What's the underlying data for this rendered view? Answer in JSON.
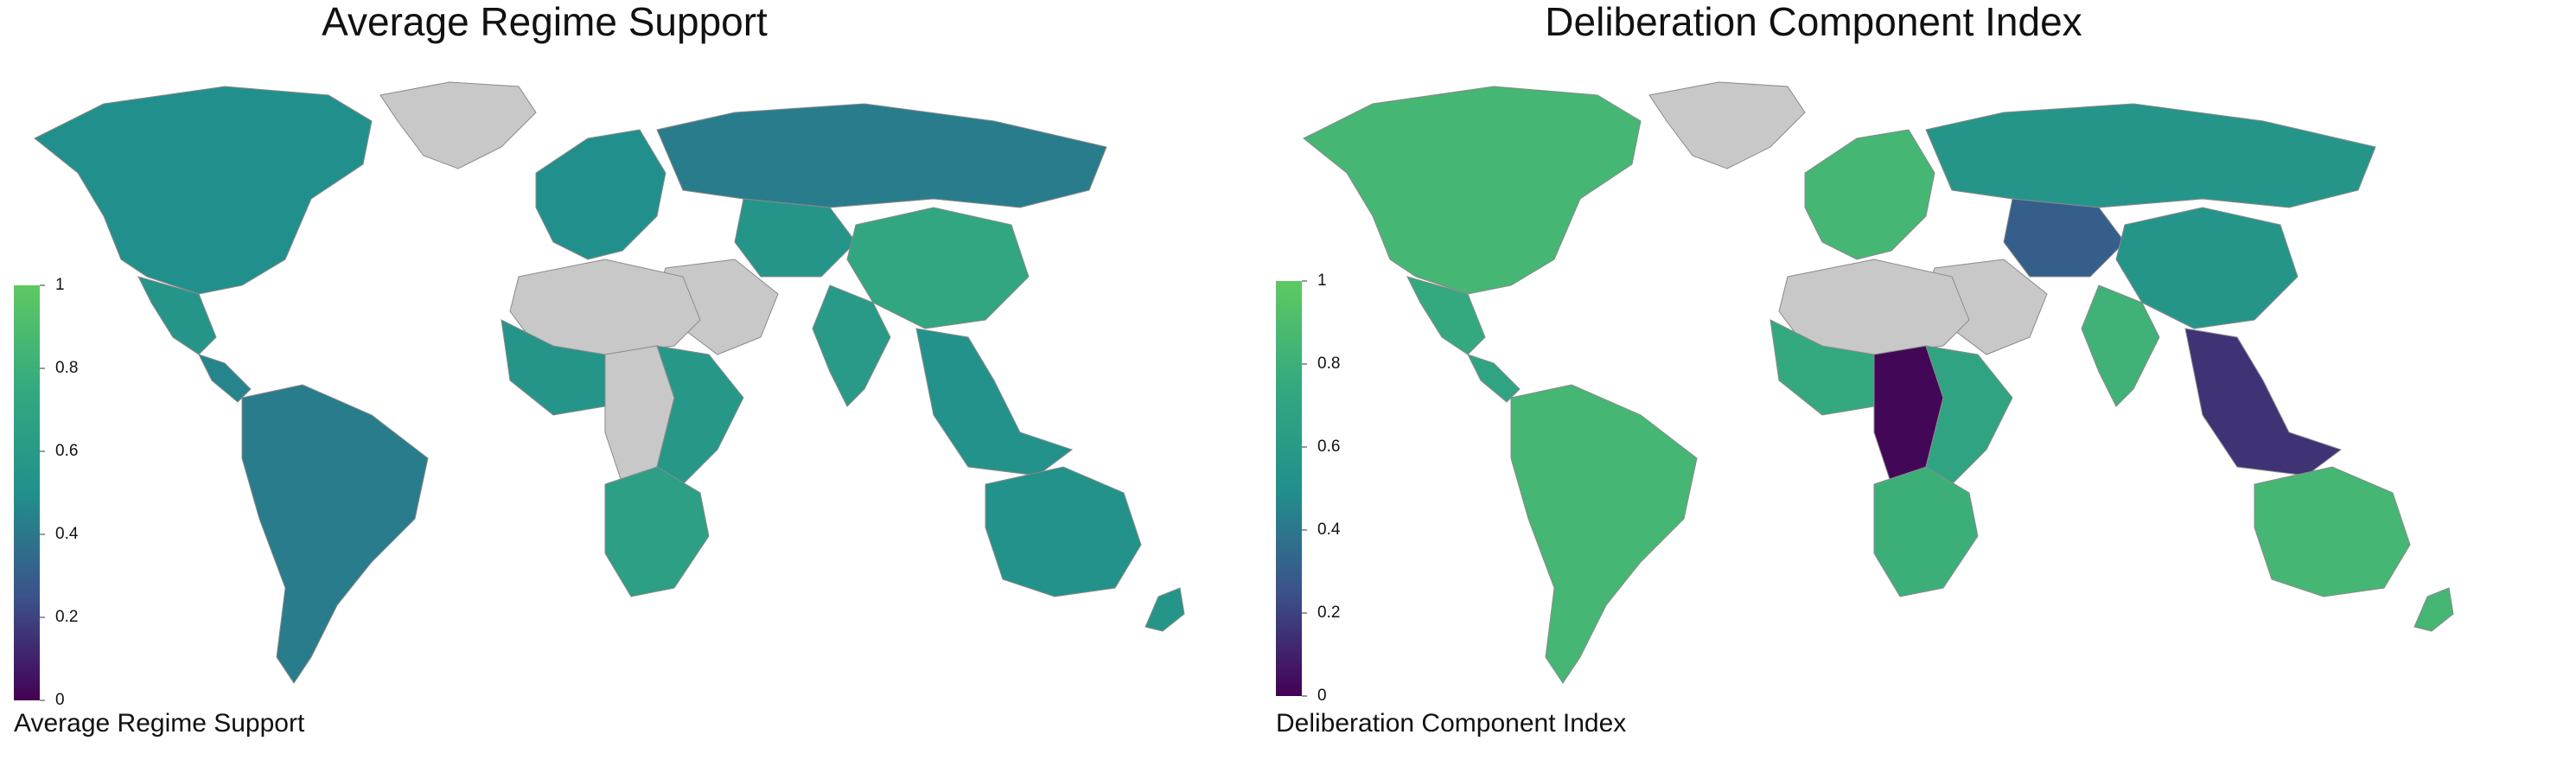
{
  "palette": {
    "na": "#c8c8c8",
    "ocean": "#ffffff",
    "scale": [
      "#440154",
      "#3b528b",
      "#21908c",
      "#34a97f",
      "#5ec962"
    ]
  },
  "left_map": {
    "title": "Average Regime Support",
    "legend_label": "Average Regime Support",
    "ticks": [
      "0",
      "0.2",
      "0.4",
      "0.6",
      "0.8",
      "1"
    ],
    "range": [
      0,
      1
    ],
    "regions": [
      {
        "name": "north-america",
        "value": 0.5
      },
      {
        "name": "mexico",
        "value": 0.55
      },
      {
        "name": "central-america",
        "value": 0.45
      },
      {
        "name": "south-america",
        "value": 0.42
      },
      {
        "name": "greenland",
        "value": null
      },
      {
        "name": "europe",
        "value": 0.5
      },
      {
        "name": "russia",
        "value": 0.42
      },
      {
        "name": "middle-east",
        "value": null
      },
      {
        "name": "north-africa",
        "value": null
      },
      {
        "name": "west-africa",
        "value": 0.55
      },
      {
        "name": "central-africa",
        "value": null
      },
      {
        "name": "east-africa",
        "value": 0.58
      },
      {
        "name": "southern-africa",
        "value": 0.65
      },
      {
        "name": "central-asia",
        "value": 0.55
      },
      {
        "name": "china",
        "value": 0.72
      },
      {
        "name": "india",
        "value": 0.6
      },
      {
        "name": "southeast-asia",
        "value": 0.52
      },
      {
        "name": "australia",
        "value": 0.52
      },
      {
        "name": "new-zealand",
        "value": 0.55
      }
    ]
  },
  "right_map": {
    "title": "Deliberation Component Index",
    "legend_label": "Deliberation Component Index",
    "ticks": [
      "0",
      "0.2",
      "0.4",
      "0.6",
      "0.8",
      "1"
    ],
    "range": [
      0,
      1
    ],
    "regions": [
      {
        "name": "north-america",
        "value": 0.85
      },
      {
        "name": "mexico",
        "value": 0.75
      },
      {
        "name": "central-america",
        "value": 0.7
      },
      {
        "name": "south-america",
        "value": 0.85
      },
      {
        "name": "greenland",
        "value": null
      },
      {
        "name": "europe",
        "value": 0.85
      },
      {
        "name": "russia",
        "value": 0.55
      },
      {
        "name": "middle-east",
        "value": null
      },
      {
        "name": "north-africa",
        "value": null
      },
      {
        "name": "west-africa",
        "value": 0.75
      },
      {
        "name": "central-africa",
        "value": 0.02
      },
      {
        "name": "east-africa",
        "value": 0.7
      },
      {
        "name": "southern-africa",
        "value": 0.8
      },
      {
        "name": "central-asia",
        "value": 0.3
      },
      {
        "name": "china",
        "value": 0.55
      },
      {
        "name": "india",
        "value": 0.82
      },
      {
        "name": "southeast-asia",
        "value": 0.15
      },
      {
        "name": "australia",
        "value": 0.85
      },
      {
        "name": "new-zealand",
        "value": 0.85
      }
    ]
  }
}
